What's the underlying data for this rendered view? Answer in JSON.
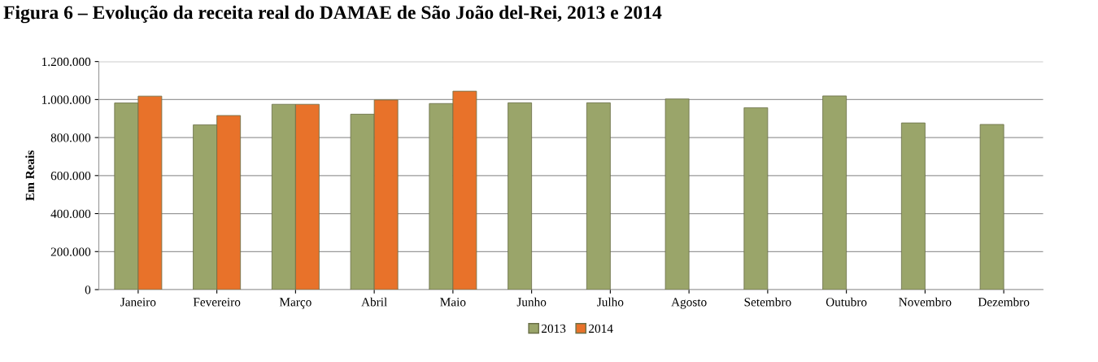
{
  "chart_data": {
    "type": "bar",
    "title": "Figura 6 – Evolução da receita real do DAMAE de São João del-Rei, 2013 e 2014",
    "ylabel": "Em Reais",
    "categories": [
      "Janeiro",
      "Fevereiro",
      "Março",
      "Abril",
      "Maio",
      "Junho",
      "Julho",
      "Agosto",
      "Setembro",
      "Outubro",
      "Novembro",
      "Dezembro"
    ],
    "series": [
      {
        "name": "2013",
        "color": "#9aa56a",
        "values": [
          982000,
          867000,
          975000,
          923000,
          979000,
          983000,
          983000,
          1003000,
          957000,
          1019000,
          877000,
          869000
        ]
      },
      {
        "name": "2014",
        "color": "#e8722a",
        "values": [
          1018000,
          916000,
          975000,
          998000,
          1044000,
          null,
          null,
          null,
          null,
          null,
          null,
          null
        ]
      }
    ],
    "ylim": [
      0,
      1200000
    ],
    "yticks": [
      {
        "value": 0,
        "label": "0"
      },
      {
        "value": 200000,
        "label": "200.000"
      },
      {
        "value": 400000,
        "label": "400.000"
      },
      {
        "value": 600000,
        "label": "600.000"
      },
      {
        "value": 800000,
        "label": "800.000"
      },
      {
        "value": 1000000,
        "label": "1.000.000"
      },
      {
        "value": 1200000,
        "label": "1.200.000"
      }
    ],
    "grid": "y",
    "legend": "bottom"
  }
}
